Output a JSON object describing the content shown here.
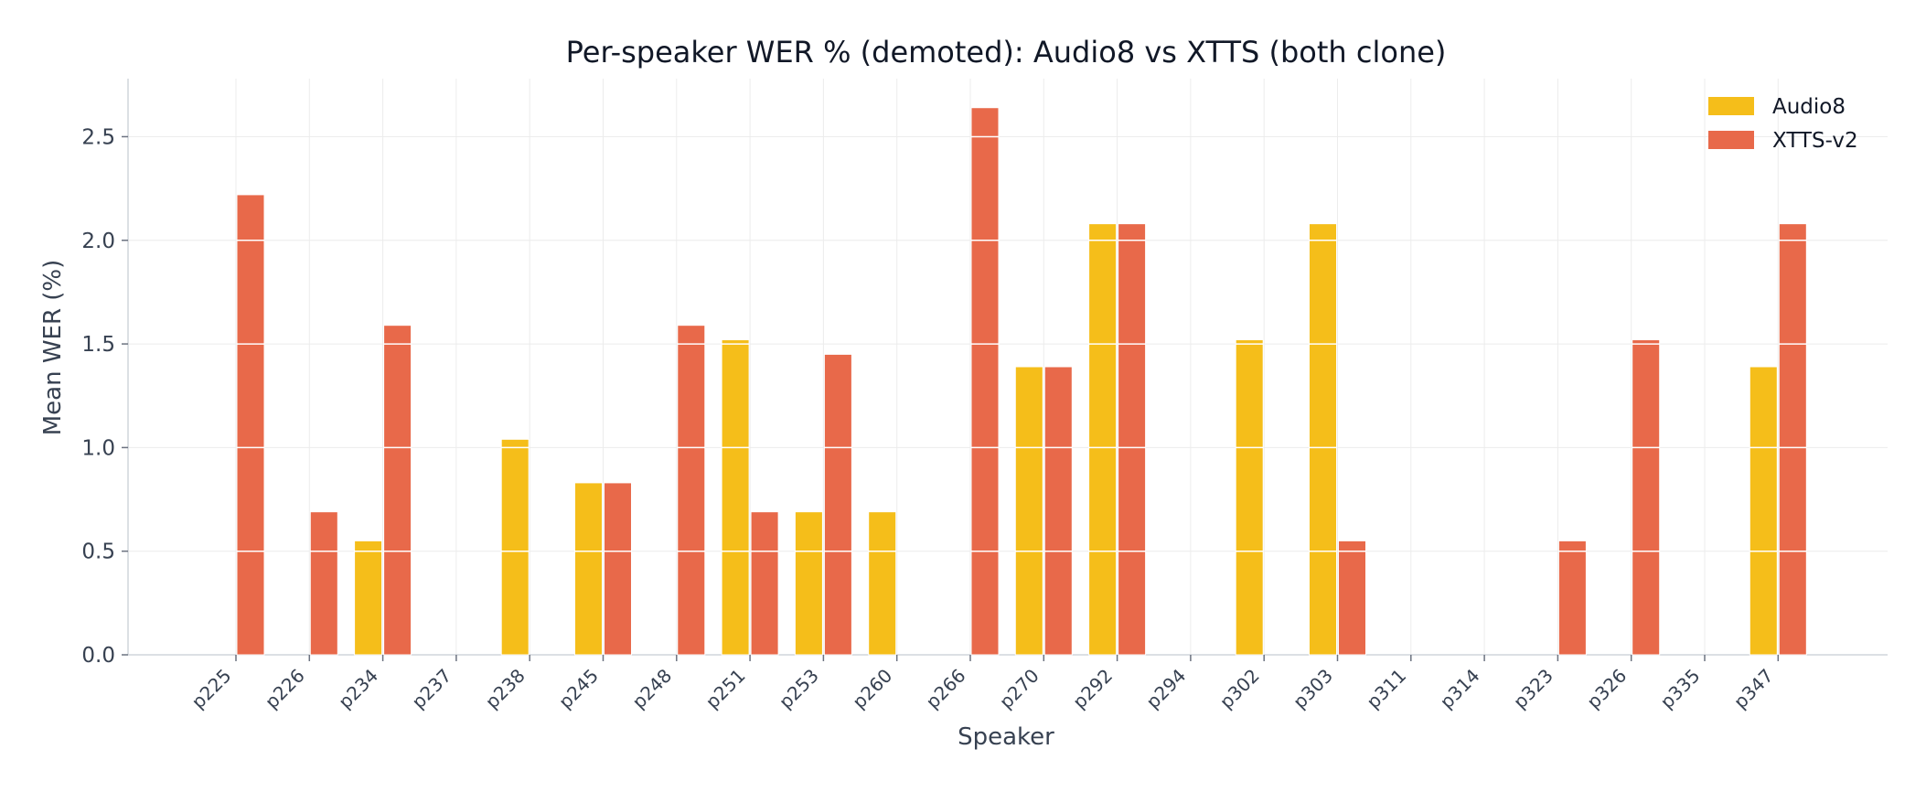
{
  "chart_data": {
    "type": "bar",
    "title": "Per-speaker WER % (demoted): Audio8 vs XTTS (both clone)",
    "xlabel": "Speaker",
    "ylabel": "Mean WER (%)",
    "ylim": [
      0,
      2.78
    ],
    "yticks": [
      "0.0",
      "0.5",
      "1.0",
      "1.5",
      "2.0",
      "2.5"
    ],
    "grid": true,
    "legend_position": "top-right",
    "categories": [
      "p225",
      "p226",
      "p234",
      "p237",
      "p238",
      "p245",
      "p248",
      "p251",
      "p253",
      "p260",
      "p266",
      "p270",
      "p292",
      "p294",
      "p302",
      "p303",
      "p311",
      "p314",
      "p323",
      "p326",
      "p335",
      "p347"
    ],
    "series": [
      {
        "name": "Audio8",
        "color": "#F5BE1A",
        "values": [
          0,
          0,
          0.55,
          0,
          1.04,
          0.83,
          0,
          1.52,
          0.69,
          0.69,
          0,
          1.39,
          2.08,
          0,
          1.52,
          2.08,
          0,
          0,
          0,
          0,
          0,
          1.39
        ]
      },
      {
        "name": "XTTS-v2",
        "color": "#E8694A",
        "values": [
          2.22,
          0.69,
          1.59,
          0,
          0,
          0.83,
          1.59,
          0.69,
          1.45,
          0,
          2.64,
          1.39,
          2.08,
          0,
          0,
          0.55,
          0,
          0,
          0.55,
          1.52,
          0,
          2.08
        ]
      }
    ]
  }
}
